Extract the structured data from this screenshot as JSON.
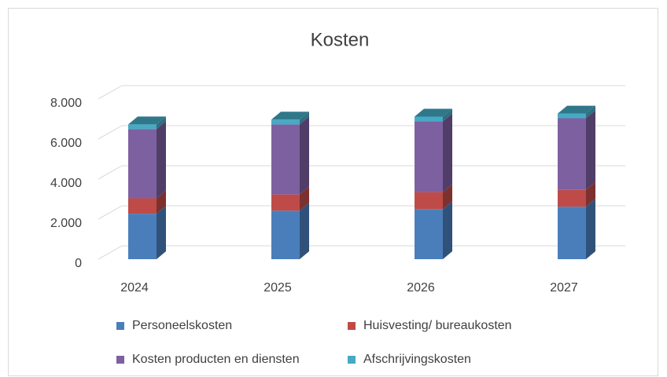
{
  "chart_data": {
    "type": "bar3d_stacked",
    "title": "Kosten",
    "categories": [
      "2024",
      "2025",
      "2026",
      "2027"
    ],
    "series": [
      {
        "name": "Personeelskosten",
        "color": "#4a7ebb",
        "values": [
          2270,
          2420,
          2500,
          2620
        ]
      },
      {
        "name": "Huisvesting/ bureaukosten",
        "color": "#be4b48",
        "values": [
          770,
          810,
          850,
          840
        ]
      },
      {
        "name": "Kosten producten en diensten",
        "color": "#7d60a0",
        "values": [
          3460,
          3500,
          3530,
          3580
        ]
      },
      {
        "name": "Afschrijvingskosten",
        "color": "#46aac5",
        "values": [
          230,
          240,
          240,
          230
        ]
      }
    ],
    "ylim": [
      0,
      8000
    ],
    "yticks": [
      0,
      {
        "value": 2000,
        "label": "2.000"
      },
      {
        "value": 4000,
        "label": "4.000"
      },
      {
        "value": 6000,
        "label": "6.000"
      },
      {
        "value": 8000,
        "label": "8.000"
      }
    ],
    "grid": true,
    "legend": "bottom"
  }
}
